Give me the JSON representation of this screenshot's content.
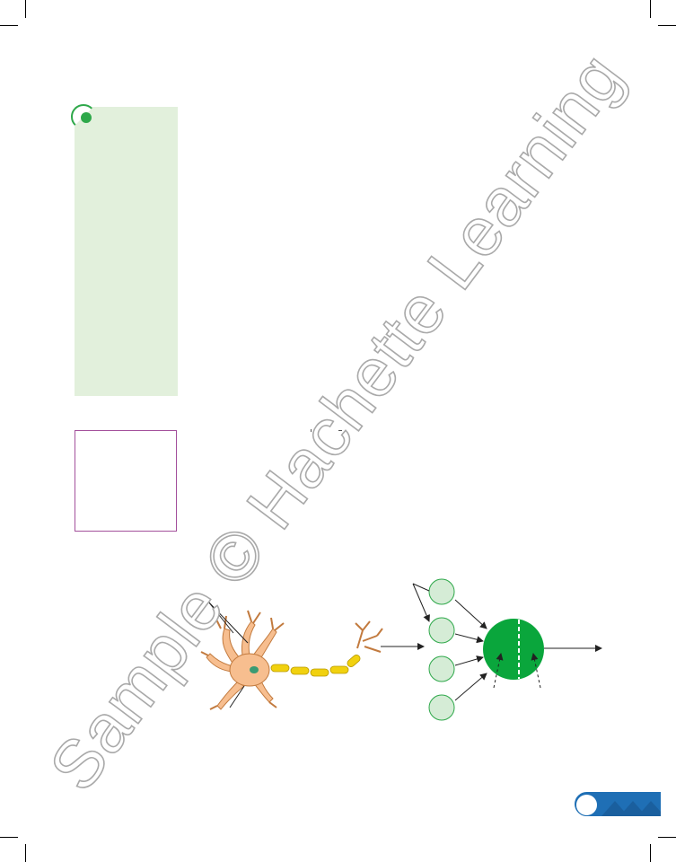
{
  "watermark": {
    "text": "Sample © Hachette Learning"
  },
  "colors": {
    "side_box": "#e2f0dc",
    "accent_green": "#2ea84a",
    "node_fill": "#d5ecd6",
    "outline_box": "#a3509b",
    "page_tab": "#1f6fb5",
    "neuron_body": "#f7be8f",
    "axon": "#f1d10f"
  },
  "diagram": {
    "input_nodes": 4,
    "icons": [
      "neuron-illustration",
      "artificial-neuron-diagram"
    ]
  }
}
